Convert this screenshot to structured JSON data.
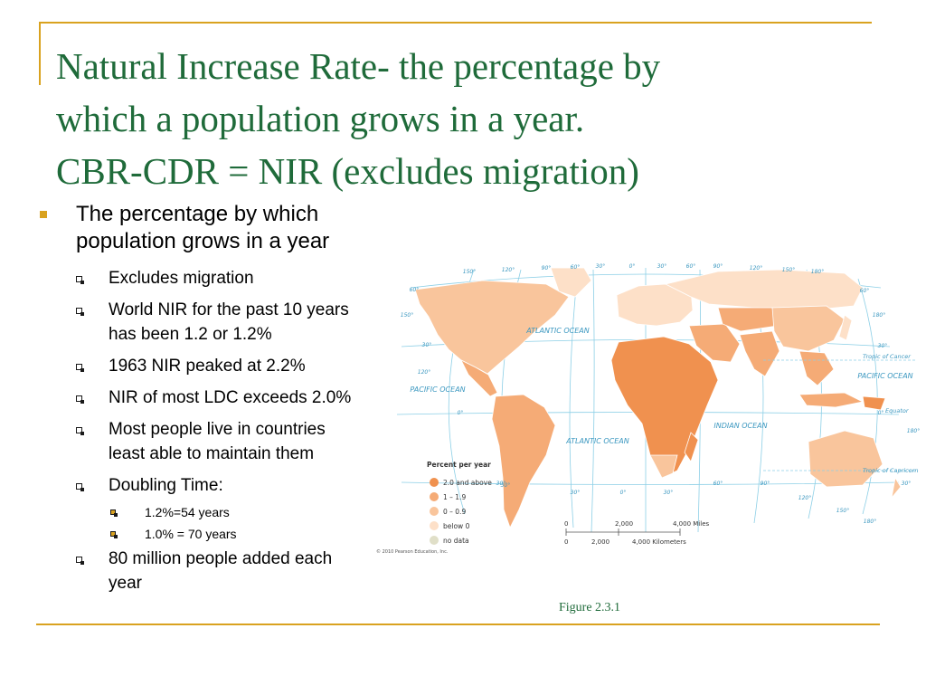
{
  "title": {
    "lines": [
      "Natural Increase Rate- the percentage by",
      "which a population grows in a year.",
      "CBR-CDR = NIR (excludes migration)"
    ]
  },
  "main_point": {
    "text": "The percentage by which population grows in a year",
    "sub_items": [
      {
        "text": "Excludes migration"
      },
      {
        "text": "World NIR for the past 10 years has been 1.2 or 1.2%"
      },
      {
        "text": "1963 NIR peaked at 2.2%"
      },
      {
        "text": "NIR of most LDC exceeds 2.0%"
      },
      {
        "text": "Most people live in countries least able to maintain them"
      },
      {
        "text": "Doubling Time:",
        "sub_items": [
          {
            "text": "1.2%=54 years"
          },
          {
            "text": "1.0% = 70 years"
          }
        ]
      },
      {
        "text": "80 million people added each year"
      }
    ]
  },
  "map": {
    "legend_title": "Percent per year",
    "legend": [
      {
        "label": "2.0 and above",
        "color": "#f0914f"
      },
      {
        "label": "1 – 1.9",
        "color": "#f5ab76"
      },
      {
        "label": "0 – 0.9",
        "color": "#f9c59c"
      },
      {
        "label": "below 0",
        "color": "#fde0c8"
      },
      {
        "label": "no data",
        "color": "#e0dfc8"
      }
    ],
    "scale_miles": [
      "0",
      "2,000",
      "4,000 Miles"
    ],
    "scale_km": [
      "0",
      "2,000",
      "4,000 Kilometers"
    ],
    "oceans": {
      "atlantic_north": "ATLANTIC OCEAN",
      "atlantic_south": "ATLANTIC OCEAN",
      "pacific_west": "PACIFIC OCEAN",
      "pacific_east": "PACIFIC OCEAN",
      "indian": "INDIAN OCEAN"
    },
    "lines": {
      "tropic_cancer": "Tropic of Cancer",
      "equator": "Equator",
      "tropic_capricorn": "Tropic of Capricorn"
    },
    "graticule_top": [
      "150°",
      "120°",
      "90°",
      "60°",
      "30°",
      "0°",
      "30°",
      "60°",
      "90°",
      "120°",
      "150°",
      "180°"
    ],
    "graticule_bottom": [
      "30°",
      "30°",
      "0°",
      "30°",
      "60°",
      "90°",
      "120°",
      "150°",
      "180°"
    ],
    "graticule_left": [
      "60°",
      "150°",
      "30°",
      "120°",
      "0°",
      "30°"
    ],
    "graticule_right": [
      "60°",
      "180°",
      "30°",
      "0°",
      "180°",
      "30°"
    ],
    "copyright": "© 2010 Pearson Education, Inc."
  },
  "caption": "Figure 2.3.1",
  "colors": {
    "title": "#1f6b3a",
    "accent": "#d9a21f"
  }
}
